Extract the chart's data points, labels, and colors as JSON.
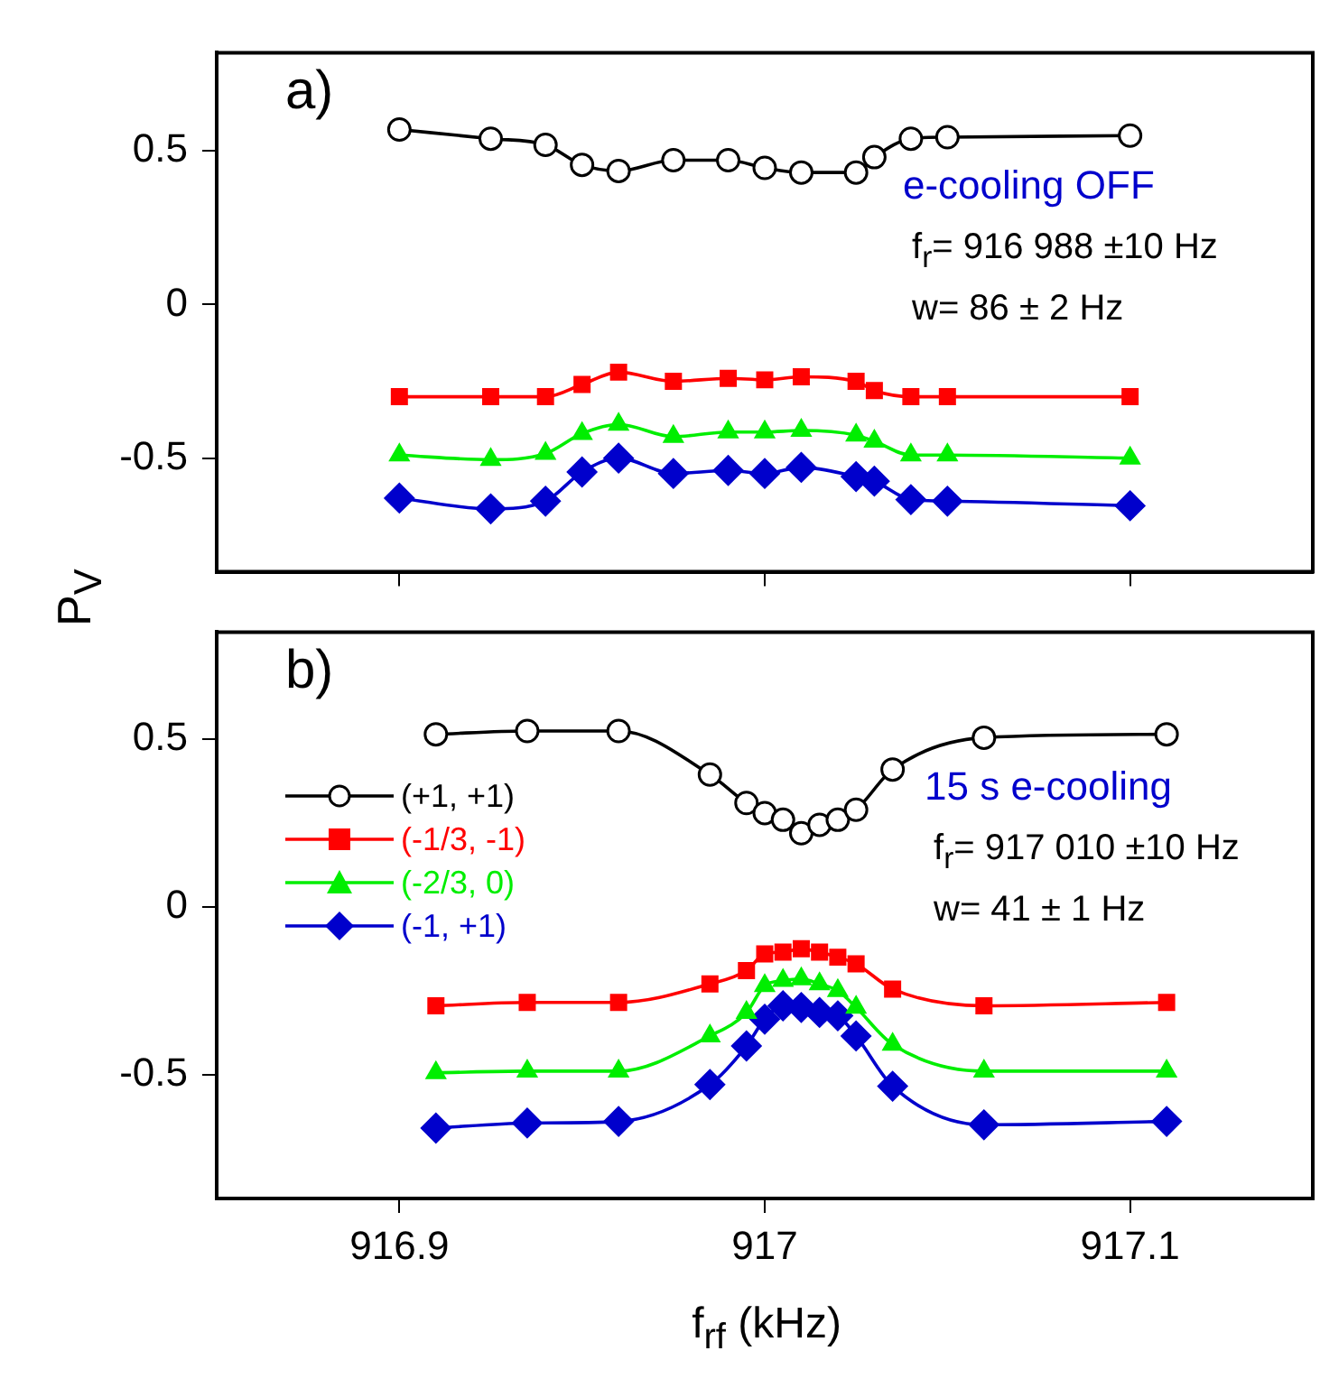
{
  "chart_data": [
    {
      "type": "line",
      "ylabel": "P$_{V}$",
      "xlim": [
        916.85,
        917.15
      ],
      "xticks": [
        916.9,
        917,
        917.1
      ],
      "ylim": [
        -0.87,
        0.82
      ],
      "yticks": [
        -0.5,
        0,
        0.5
      ],
      "tick_labels": "y",
      "grid": false,
      "legend": false,
      "annotations": [
        "a)",
        "e-cooling OFF",
        "f$_{r}$= 916 988 ±10 Hz",
        "w= 86 ± 2 Hz"
      ],
      "x": [
        916.9,
        916.925,
        916.94,
        916.95,
        916.96,
        916.975,
        916.99,
        917.0,
        917.01,
        917.025,
        917.03,
        917.04,
        917.05,
        917.1
      ],
      "series": [
        {
          "color": "#000000",
          "marker": "circle",
          "values": [
            0.57,
            0.54,
            0.52,
            0.455,
            0.435,
            0.47,
            0.47,
            0.445,
            0.43,
            0.43,
            0.48,
            0.54,
            0.545,
            0.55
          ]
        },
        {
          "color": "#ff0000",
          "marker": "square",
          "values": [
            -0.3,
            -0.3,
            -0.3,
            -0.26,
            -0.22,
            -0.25,
            -0.24,
            -0.245,
            -0.235,
            -0.25,
            -0.28,
            -0.3,
            -0.3,
            -0.3
          ]
        },
        {
          "color": "#00ee00",
          "marker": "triangle",
          "values": [
            -0.49,
            -0.505,
            -0.485,
            -0.42,
            -0.39,
            -0.43,
            -0.415,
            -0.415,
            -0.41,
            -0.425,
            -0.445,
            -0.49,
            -0.49,
            -0.5
          ]
        },
        {
          "color": "#0000cc",
          "marker": "diamond",
          "values": [
            -0.63,
            -0.665,
            -0.64,
            -0.545,
            -0.5,
            -0.55,
            -0.54,
            -0.55,
            -0.53,
            -0.56,
            -0.575,
            -0.635,
            -0.64,
            -0.655
          ]
        }
      ]
    },
    {
      "type": "line",
      "xlabel": "f$_{rf}$ (kHz)",
      "xlim": [
        916.85,
        917.15
      ],
      "xticks": [
        916.9,
        917,
        917.1
      ],
      "ylim": [
        -0.87,
        0.82
      ],
      "yticks": [
        -0.5,
        0,
        0.5
      ],
      "grid": false,
      "legend": "left",
      "annotations": [
        "b)",
        "15 s e-cooling",
        "f$_{r}$= 917 010 ±10 Hz",
        "w= 41 ± 1 Hz"
      ],
      "x": [
        916.91,
        916.935,
        916.96,
        916.985,
        916.995,
        917.0,
        917.005,
        917.01,
        917.015,
        917.02,
        917.025,
        917.035,
        917.06,
        917.11
      ],
      "series": [
        {
          "name": "(+1, +1)",
          "color": "#000000",
          "marker": "circle",
          "values": [
            0.515,
            0.525,
            0.525,
            0.395,
            0.31,
            0.28,
            0.26,
            0.22,
            0.245,
            0.26,
            0.29,
            0.41,
            0.505,
            0.515
          ]
        },
        {
          "name": "(-1/3, -1)",
          "color": "#ff0000",
          "marker": "square",
          "values": [
            -0.295,
            -0.285,
            -0.285,
            -0.23,
            -0.19,
            -0.14,
            -0.135,
            -0.125,
            -0.135,
            -0.15,
            -0.17,
            -0.245,
            -0.295,
            -0.285
          ]
        },
        {
          "name": "(-2/3, 0)",
          "color": "#00ee00",
          "marker": "triangle",
          "values": [
            -0.495,
            -0.49,
            -0.49,
            -0.385,
            -0.315,
            -0.235,
            -0.22,
            -0.215,
            -0.23,
            -0.25,
            -0.3,
            -0.41,
            -0.49,
            -0.49
          ]
        },
        {
          "name": "(-1, +1)",
          "color": "#0000cc",
          "marker": "diamond",
          "values": [
            -0.66,
            -0.645,
            -0.64,
            -0.53,
            -0.415,
            -0.335,
            -0.295,
            -0.3,
            -0.315,
            -0.325,
            -0.385,
            -0.535,
            -0.65,
            -0.64
          ]
        }
      ]
    }
  ]
}
